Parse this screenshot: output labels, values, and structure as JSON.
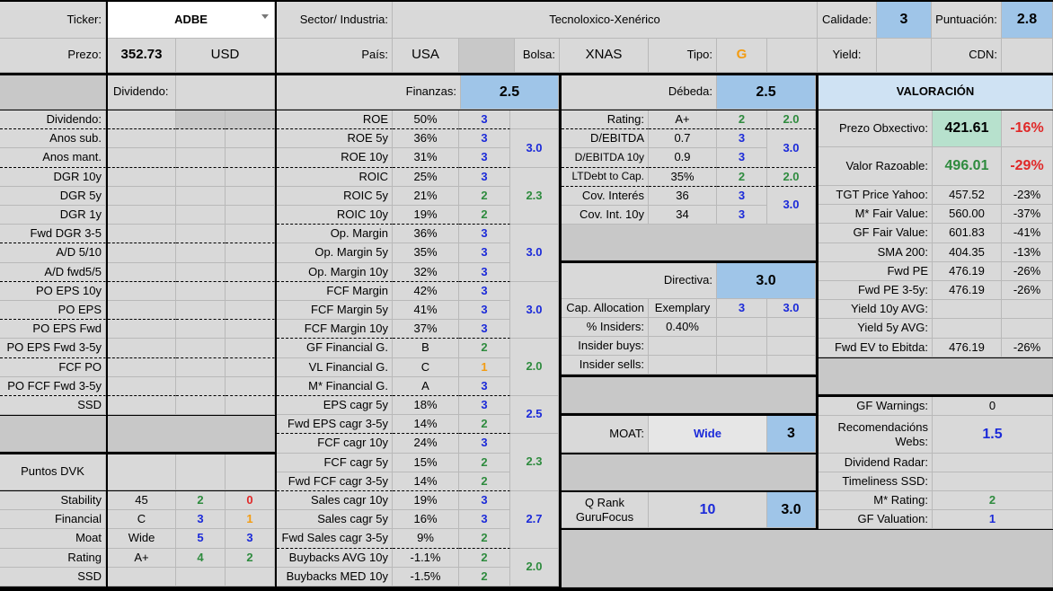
{
  "header": {
    "ticker_label": "Ticker:",
    "ticker_value": "ADBE",
    "sector_label": "Sector/ Industria:",
    "sector_value": "Tecnoloxico-Xenérico",
    "quality_label": "Calidade:",
    "quality_value": "3",
    "score_label": "Puntuación:",
    "score_value": "2.8",
    "price_label": "Prezo:",
    "price_value": "352.73",
    "currency": "USD",
    "country_label": "País:",
    "country_value": "USA",
    "exchange_label": "Bolsa:",
    "exchange_value": "XNAS",
    "type_label": "Tipo:",
    "type_value": "G",
    "yield_label": "Yield:",
    "cdn_label": "CDN:"
  },
  "dividend": {
    "section_label": "Dividendo:",
    "rows": [
      "Dividendo:",
      "Anos sub.",
      "Anos mant.",
      "DGR 10y",
      "DGR 5y",
      "DGR 1y",
      "Fwd DGR 3-5",
      "A/D 5/10",
      "A/D fwd5/5",
      "PO EPS 10y",
      "PO EPS",
      "PO EPS Fwd",
      "PO EPS Fwd 3-5y",
      "FCF PO",
      "PO FCF Fwd 3-5y",
      "SSD"
    ],
    "dvk_label": "Puntos DVK",
    "dvk_rows": [
      {
        "label": "Stability",
        "value": "45",
        "s1": "2",
        "s2": "0"
      },
      {
        "label": "Financial",
        "value": "C",
        "s1": "3",
        "s2": "1"
      },
      {
        "label": "Moat",
        "value": "Wide",
        "s1": "5",
        "s2": "3"
      },
      {
        "label": "Rating",
        "value": "A+",
        "s1": "4",
        "s2": "2"
      },
      {
        "label": "SSD",
        "value": "",
        "s1": "",
        "s2": ""
      }
    ]
  },
  "finance": {
    "title": "Finanzas:",
    "score": "2.5",
    "rows": [
      {
        "label": "ROE",
        "value": "50%",
        "s": "3"
      },
      {
        "label": "ROE 5y",
        "value": "36%",
        "s": "3"
      },
      {
        "label": "ROE 10y",
        "value": "31%",
        "s": "3"
      },
      {
        "label": "ROIC",
        "value": "25%",
        "s": "3"
      },
      {
        "label": "ROIC 5y",
        "value": "21%",
        "s": "2"
      },
      {
        "label": "ROIC 10y",
        "value": "19%",
        "s": "2"
      },
      {
        "label": "Op. Margin",
        "value": "36%",
        "s": "3"
      },
      {
        "label": "Op. Margin 5y",
        "value": "35%",
        "s": "3"
      },
      {
        "label": "Op. Margin 10y",
        "value": "32%",
        "s": "3"
      },
      {
        "label": "FCF Margin",
        "value": "42%",
        "s": "3"
      },
      {
        "label": "FCF Margin 5y",
        "value": "41%",
        "s": "3"
      },
      {
        "label": "FCF Margin 10y",
        "value": "37%",
        "s": "3"
      },
      {
        "label": "GF Financial G.",
        "value": "B",
        "s": "2"
      },
      {
        "label": "VL Financial G.",
        "value": "C",
        "s": "1"
      },
      {
        "label": "M* Financial G.",
        "value": "A",
        "s": "3"
      },
      {
        "label": "EPS cagr 5y",
        "value": "18%",
        "s": "3"
      },
      {
        "label": "Fwd EPS cagr 3-5y",
        "value": "14%",
        "s": "2"
      },
      {
        "label": "FCF cagr 10y",
        "value": "24%",
        "s": "3"
      },
      {
        "label": "FCF cagr 5y",
        "value": "15%",
        "s": "2"
      },
      {
        "label": "Fwd FCF cagr 3-5y",
        "value": "14%",
        "s": "2"
      },
      {
        "label": "Sales cagr 10y",
        "value": "19%",
        "s": "3"
      },
      {
        "label": "Sales cagr 5y",
        "value": "16%",
        "s": "3"
      },
      {
        "label": "Fwd Sales cagr 3-5y",
        "value": "9%",
        "s": "2"
      },
      {
        "label": "Buybacks AVG 10y",
        "value": "-1.1%",
        "s": "2"
      },
      {
        "label": "Buybacks MED 10y",
        "value": "-1.5%",
        "s": "2"
      }
    ],
    "groups": [
      "3.0",
      "2.3",
      "3.0",
      "3.0",
      "2.0",
      "2.5",
      "2.3",
      "2.7",
      "2.0"
    ]
  },
  "debt": {
    "title": "Débeda:",
    "score": "2.5",
    "rows": [
      {
        "label": "Rating:",
        "value": "A+",
        "s": "2"
      },
      {
        "label": "D/EBITDA",
        "value": "0.7",
        "s": "3"
      },
      {
        "label": "D/EBITDA 10y",
        "value": "0.9",
        "s": "3"
      },
      {
        "label": "LTDebt to Cap.",
        "value": "35%",
        "s": "2"
      },
      {
        "label": "Cov. Interés",
        "value": "36",
        "s": "3"
      },
      {
        "label": "Cov. Int. 10y",
        "value": "34",
        "s": "3"
      }
    ],
    "groups": [
      "2.0",
      "3.0",
      "2.0",
      "3.0"
    ]
  },
  "management": {
    "title": "Directiva:",
    "score": "3.0",
    "cap_label": "Cap. Allocation",
    "cap_value": "Exemplary",
    "cap_s": "3",
    "cap_group": "3.0",
    "insiders_label": "% Insiders:",
    "insiders_value": "0.40%",
    "buys_label": "Insider buys:",
    "sells_label": "Insider sells:"
  },
  "moat": {
    "label": "MOAT:",
    "value": "Wide",
    "score": "3"
  },
  "qrank": {
    "label": "Q Rank GuruFocus",
    "value": "10",
    "score": "3.0"
  },
  "valuation": {
    "title": "VALORACIÓN",
    "target_label": "Prezo Obxectivo:",
    "target_value": "421.61",
    "target_pct": "-16%",
    "fair_label": "Valor Razoable:",
    "fair_value": "496.01",
    "fair_pct": "-29%",
    "rows": [
      {
        "label": "TGT Price Yahoo:",
        "value": "457.52",
        "pct": "-23%"
      },
      {
        "label": "M* Fair Value:",
        "value": "560.00",
        "pct": "-37%"
      },
      {
        "label": "GF Fair Value:",
        "value": "601.83",
        "pct": "-41%"
      },
      {
        "label": "SMA 200:",
        "value": "404.35",
        "pct": "-13%"
      },
      {
        "label": "Fwd PE",
        "value": "476.19",
        "pct": "-26%"
      },
      {
        "label": "Fwd PE 3-5y:",
        "value": "476.19",
        "pct": "-26%"
      },
      {
        "label": "Yield 10y AVG:",
        "value": "",
        "pct": ""
      },
      {
        "label": "Yield 5y AVG:",
        "value": "",
        "pct": ""
      },
      {
        "label": "Fwd EV to Ebitda:",
        "value": "476.19",
        "pct": "-26%"
      }
    ],
    "warnings_label": "GF Warnings:",
    "warnings_value": "0",
    "rec_label": "Recomendacións Webs:",
    "rec_value": "1.5",
    "radar_label": "Dividend Radar:",
    "timeliness_label": "Timeliness SSD:",
    "mstar_label": "M* Rating:",
    "mstar_value": "2",
    "gfval_label": "GF Valuation:",
    "gfval_value": "1"
  }
}
